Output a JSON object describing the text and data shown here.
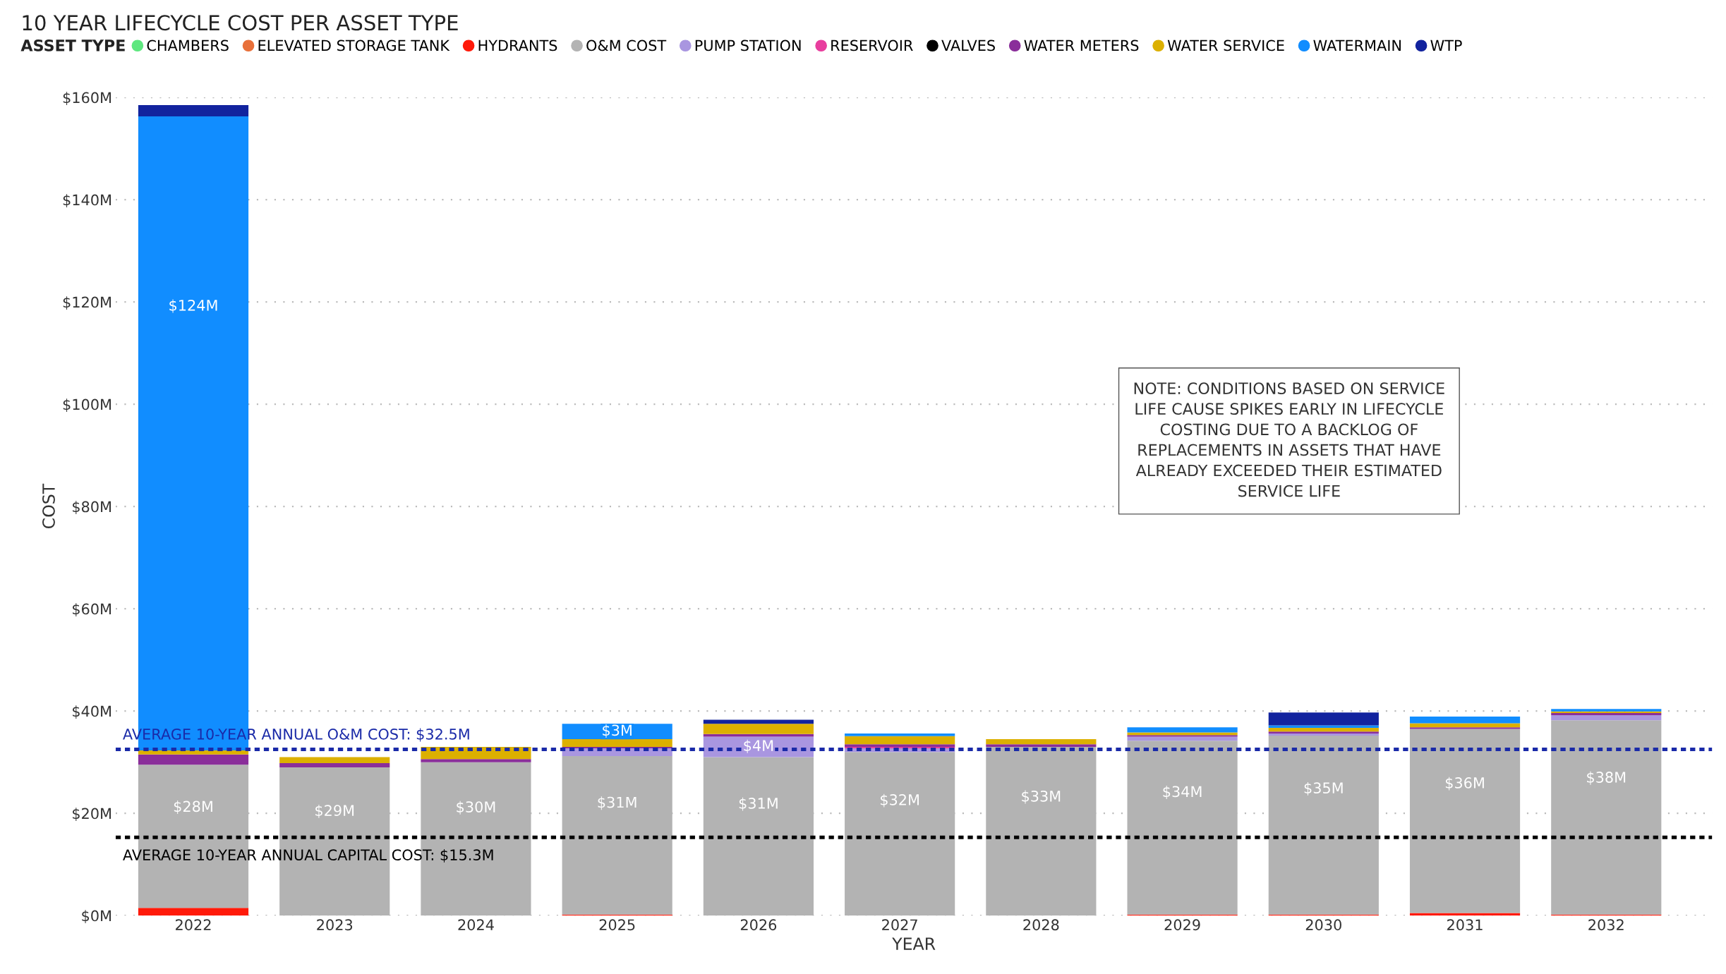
{
  "chart_data": {
    "type": "bar",
    "stacked": true,
    "title": "10 YEAR LIFECYCLE COST PER ASSET TYPE",
    "xlabel": "YEAR",
    "ylabel": "COST",
    "legend_title": "ASSET TYPE",
    "legend": "top",
    "categories": [
      "2022",
      "2023",
      "2024",
      "2025",
      "2026",
      "2027",
      "2028",
      "2029",
      "2030",
      "2031",
      "2032"
    ],
    "series": [
      {
        "name": "CHAMBERS",
        "color": "#5ee77f",
        "values": [
          0,
          0,
          0,
          0,
          0,
          0,
          0,
          0,
          0,
          0,
          0
        ]
      },
      {
        "name": "ELEVATED STORAGE TANK",
        "color": "#e8703a",
        "values": [
          0,
          0,
          0,
          0,
          0,
          0,
          0,
          0,
          0,
          0,
          0
        ]
      },
      {
        "name": "HYDRANTS",
        "color": "#ff1a0a",
        "values": [
          1.5,
          0,
          0,
          0.2,
          0,
          0,
          0,
          0.2,
          0.2,
          0.5,
          0.2
        ]
      },
      {
        "name": "O&M COST",
        "color": "#b3b3b3",
        "values": [
          28,
          29,
          30,
          31,
          31,
          32,
          33,
          34,
          35,
          36,
          38
        ],
        "value_labels": [
          "$28M",
          "$29M",
          "$30M",
          "$31M",
          "$31M",
          "$32M",
          "$33M",
          "$34M",
          "$35M",
          "$36M",
          "$38M"
        ]
      },
      {
        "name": "PUMP STATION",
        "color": "#a996e0",
        "values": [
          0,
          0,
          0,
          1.5,
          4,
          0.7,
          0,
          0.8,
          0.4,
          0,
          1.0
        ],
        "value_labels": [
          null,
          null,
          null,
          null,
          "$4M",
          null,
          null,
          null,
          null,
          null,
          null
        ]
      },
      {
        "name": "RESERVOIR",
        "color": "#e83e9e",
        "values": [
          0,
          0,
          0,
          0,
          0,
          0.3,
          0,
          0,
          0,
          0,
          0
        ]
      },
      {
        "name": "VALVES",
        "color": "#000000",
        "values": [
          0,
          0,
          0,
          0,
          0,
          0,
          0,
          0,
          0,
          0,
          0
        ]
      },
      {
        "name": "WATER METERS",
        "color": "#8a2e9a",
        "values": [
          2,
          0.8,
          0.6,
          0.3,
          0.5,
          0.5,
          0.5,
          0.3,
          0.4,
          0.3,
          0.4
        ]
      },
      {
        "name": "WATER SERVICE",
        "color": "#dcb000",
        "values": [
          0.8,
          1.2,
          2.4,
          1.5,
          2,
          1.6,
          1.0,
          0.5,
          0.7,
          0.8,
          0.3
        ]
      },
      {
        "name": "WATERMAIN",
        "color": "#118dff",
        "values": [
          124,
          0,
          0,
          3,
          0,
          0.5,
          0,
          1,
          0.5,
          1.3,
          0.5
        ],
        "value_labels": [
          "$124M",
          null,
          null,
          "$3M",
          null,
          null,
          null,
          null,
          null,
          null,
          null
        ]
      },
      {
        "name": "WTP",
        "color": "#12239e",
        "values": [
          2.2,
          0,
          0,
          0,
          0.8,
          0,
          0,
          0,
          2.5,
          0,
          0
        ]
      }
    ],
    "ylim": [
      0,
      160
    ],
    "yticks": [
      {
        "value": 0,
        "label": "$0M"
      },
      {
        "value": 20,
        "label": "$20M"
      },
      {
        "value": 40,
        "label": "$40M"
      },
      {
        "value": 60,
        "label": "$60M"
      },
      {
        "value": 80,
        "label": "$80M"
      },
      {
        "value": 100,
        "label": "$100M"
      },
      {
        "value": 120,
        "label": "$120M"
      },
      {
        "value": 140,
        "label": "$140M"
      },
      {
        "value": 160,
        "label": "$160M"
      }
    ],
    "grid": "y",
    "ref_lines": [
      {
        "axis": "y",
        "value": 32.5,
        "label": "AVERAGE 10-YEAR ANNUAL O&M COST: $32.5M",
        "color": "#1a2aa8",
        "line_style": "dotted"
      },
      {
        "axis": "y",
        "value": 15.3,
        "label": "AVERAGE 10-YEAR ANNUAL CAPITAL COST: $15.3M",
        "color": "#000000",
        "line_style": "dotted"
      }
    ],
    "annotations": [
      "NOTE: CONDITIONS BASED ON SERVICE\nLIFE CAUSE SPIKES EARLY IN LIFECYCLE\nCOSTING DUE TO A BACKLOG OF\nREPLACEMENTS IN ASSETS THAT HAVE\nALREADY EXCEEDED THEIR ESTIMATED\nSERVICE LIFE"
    ]
  }
}
